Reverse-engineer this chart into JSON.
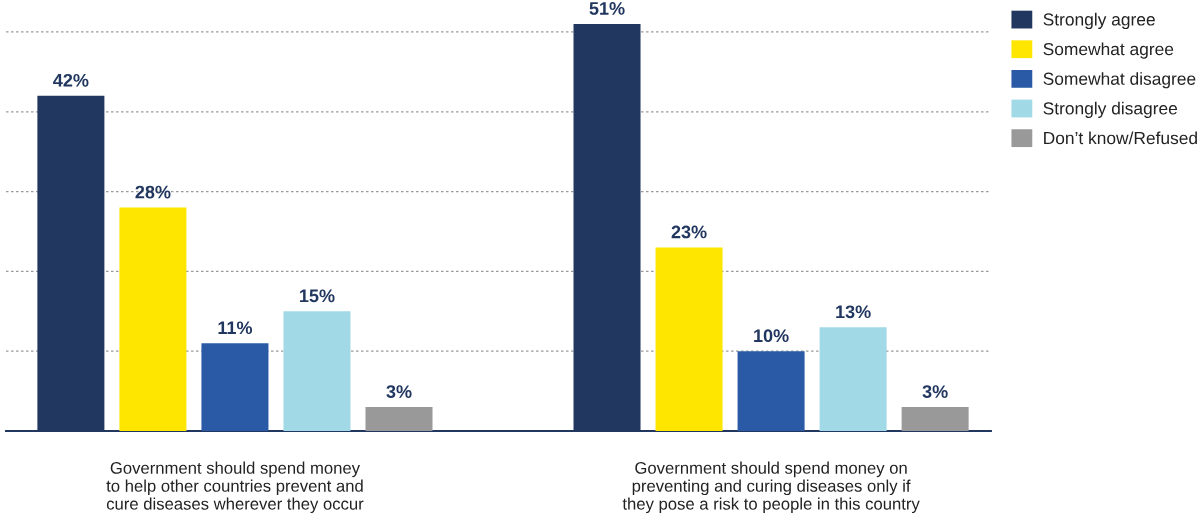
{
  "chart_data": {
    "type": "bar",
    "categories": [
      "Government should spend money\nto help other countries prevent and\ncure diseases wherever they occur",
      "Government should spend money on\npreventing and curing diseases only if\nthey pose a risk to people in this country"
    ],
    "series": [
      {
        "name": "Strongly agree",
        "color": "#22375f",
        "values": [
          42,
          51
        ],
        "value_labels": [
          "42%",
          "51%"
        ]
      },
      {
        "name": "Somewhat agree",
        "color": "#ffe600",
        "values": [
          28,
          23
        ],
        "value_labels": [
          "28%",
          "23%"
        ]
      },
      {
        "name": "Somewhat disagree",
        "color": "#2a5aa5",
        "values": [
          11,
          10
        ],
        "value_labels": [
          "11%",
          "10%"
        ]
      },
      {
        "name": "Strongly disagree",
        "color": "#a1d9e6",
        "values": [
          15,
          13
        ],
        "value_labels": [
          "15%",
          "13%"
        ]
      },
      {
        "name": "Don’t know/Refused",
        "color": "#999999",
        "values": [
          3,
          3
        ],
        "value_labels": [
          "3%",
          "3%"
        ]
      }
    ],
    "yticks": [
      {
        "value": 10,
        "label": null
      },
      {
        "value": 20,
        "label": null
      },
      {
        "value": 30,
        "label": null
      },
      {
        "value": 40,
        "label": null
      },
      {
        "value": 50,
        "label": null
      }
    ],
    "grid": "y",
    "legend": "top right"
  }
}
